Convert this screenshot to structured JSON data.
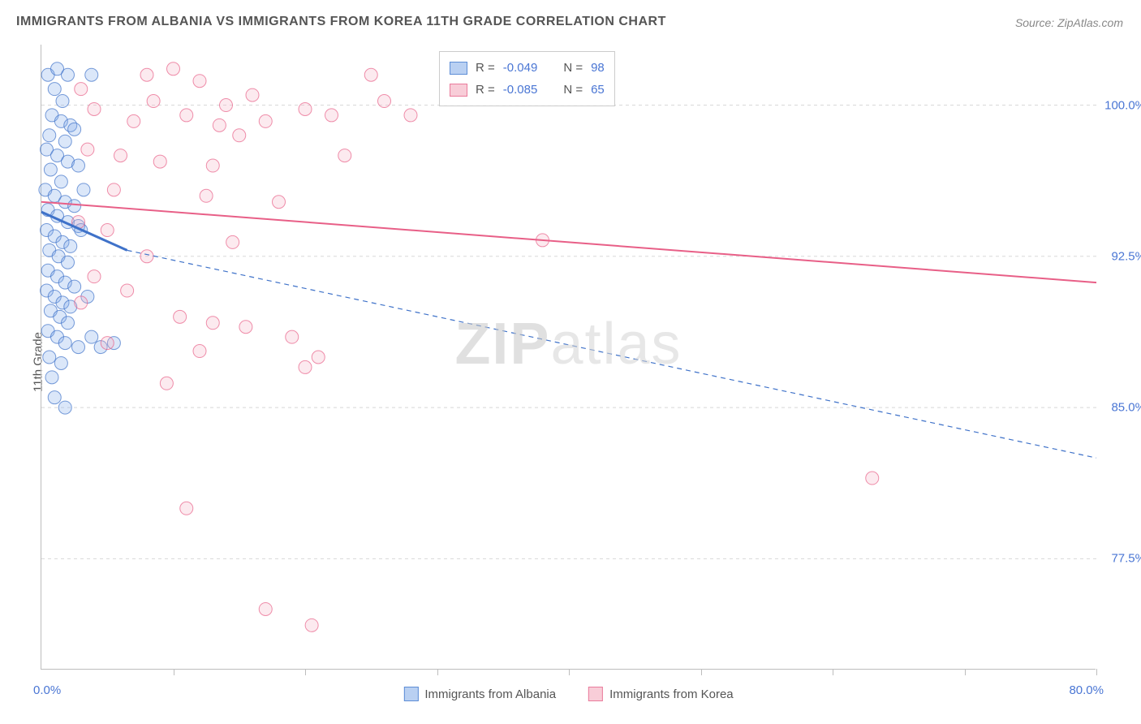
{
  "title": "IMMIGRANTS FROM ALBANIA VS IMMIGRANTS FROM KOREA 11TH GRADE CORRELATION CHART",
  "source": "Source: ZipAtlas.com",
  "ylabel": "11th Grade",
  "watermark_bold": "ZIP",
  "watermark_thin": "atlas",
  "chart": {
    "type": "scatter",
    "xlim": [
      0,
      80
    ],
    "ylim": [
      72,
      103
    ],
    "x_tick_positions": [
      0,
      10,
      20,
      30,
      40,
      50,
      60,
      70,
      80
    ],
    "x_axis_labels": {
      "left": "0.0%",
      "right": "80.0%"
    },
    "y_ticks": [
      {
        "value": 77.5,
        "label": "77.5%"
      },
      {
        "value": 85.0,
        "label": "85.0%"
      },
      {
        "value": 92.5,
        "label": "92.5%"
      },
      {
        "value": 100.0,
        "label": "100.0%"
      }
    ],
    "background_color": "#ffffff",
    "grid_color": "#d8d8d8",
    "axis_color": "#bdbdbd",
    "marker_radius": 8,
    "marker_stroke_width": 1,
    "marker_fill_opacity": 0.28,
    "line_width": 2,
    "series": [
      {
        "name": "Immigrants from Albania",
        "color_fill": "#7da9e8",
        "color_stroke": "#3f72c9",
        "swatch_fill": "#b9d0f2",
        "swatch_stroke": "#5d8dd6",
        "R": "-0.049",
        "N": "98",
        "regression": {
          "x1": 0,
          "y1": 94.7,
          "x2": 6.5,
          "y2": 92.8,
          "dash_x2": 80,
          "dash_y2": 82.5
        },
        "points": [
          [
            0.5,
            101.5
          ],
          [
            1.2,
            101.8
          ],
          [
            2.0,
            101.5
          ],
          [
            3.8,
            101.5
          ],
          [
            1.0,
            100.8
          ],
          [
            1.6,
            100.2
          ],
          [
            0.8,
            99.5
          ],
          [
            1.5,
            99.2
          ],
          [
            2.2,
            99.0
          ],
          [
            0.6,
            98.5
          ],
          [
            1.8,
            98.2
          ],
          [
            2.5,
            98.8
          ],
          [
            0.4,
            97.8
          ],
          [
            1.2,
            97.5
          ],
          [
            2.0,
            97.2
          ],
          [
            2.8,
            97.0
          ],
          [
            0.7,
            96.8
          ],
          [
            1.5,
            96.2
          ],
          [
            0.3,
            95.8
          ],
          [
            1.0,
            95.5
          ],
          [
            1.8,
            95.2
          ],
          [
            2.5,
            95.0
          ],
          [
            3.2,
            95.8
          ],
          [
            0.5,
            94.8
          ],
          [
            1.2,
            94.5
          ],
          [
            2.0,
            94.2
          ],
          [
            2.8,
            94.0
          ],
          [
            0.4,
            93.8
          ],
          [
            1.0,
            93.5
          ],
          [
            1.6,
            93.2
          ],
          [
            2.2,
            93.0
          ],
          [
            3.0,
            93.8
          ],
          [
            0.6,
            92.8
          ],
          [
            1.3,
            92.5
          ],
          [
            2.0,
            92.2
          ],
          [
            0.5,
            91.8
          ],
          [
            1.2,
            91.5
          ],
          [
            1.8,
            91.2
          ],
          [
            2.5,
            91.0
          ],
          [
            0.4,
            90.8
          ],
          [
            1.0,
            90.5
          ],
          [
            1.6,
            90.2
          ],
          [
            2.2,
            90.0
          ],
          [
            3.5,
            90.5
          ],
          [
            0.7,
            89.8
          ],
          [
            1.4,
            89.5
          ],
          [
            2.0,
            89.2
          ],
          [
            0.5,
            88.8
          ],
          [
            1.2,
            88.5
          ],
          [
            1.8,
            88.2
          ],
          [
            2.8,
            88.0
          ],
          [
            3.8,
            88.5
          ],
          [
            4.5,
            88.0
          ],
          [
            5.5,
            88.2
          ],
          [
            0.6,
            87.5
          ],
          [
            1.5,
            87.2
          ],
          [
            0.8,
            86.5
          ],
          [
            1.0,
            85.5
          ],
          [
            1.8,
            85.0
          ]
        ]
      },
      {
        "name": "Immigrants from Korea",
        "color_fill": "#f5b5c5",
        "color_stroke": "#e85f87",
        "swatch_fill": "#f8cdd8",
        "swatch_stroke": "#ea7b9b",
        "R": "-0.085",
        "N": "65",
        "regression": {
          "x1": 0,
          "y1": 95.2,
          "x2": 80,
          "y2": 91.2
        },
        "points": [
          [
            3.0,
            100.8
          ],
          [
            8.0,
            101.5
          ],
          [
            10.0,
            101.8
          ],
          [
            12.0,
            101.2
          ],
          [
            25.0,
            101.5
          ],
          [
            4.0,
            99.8
          ],
          [
            7.0,
            99.2
          ],
          [
            11.0,
            99.5
          ],
          [
            13.5,
            99.0
          ],
          [
            15.0,
            98.5
          ],
          [
            17.0,
            99.2
          ],
          [
            8.5,
            100.2
          ],
          [
            14.0,
            100.0
          ],
          [
            16.0,
            100.5
          ],
          [
            22.0,
            99.5
          ],
          [
            26.0,
            100.2
          ],
          [
            20.0,
            99.8
          ],
          [
            28.0,
            99.5
          ],
          [
            3.5,
            97.8
          ],
          [
            6.0,
            97.5
          ],
          [
            9.0,
            97.2
          ],
          [
            13.0,
            97.0
          ],
          [
            23.0,
            97.5
          ],
          [
            5.5,
            95.8
          ],
          [
            12.5,
            95.5
          ],
          [
            18.0,
            95.2
          ],
          [
            2.8,
            94.2
          ],
          [
            5.0,
            93.8
          ],
          [
            8.0,
            92.5
          ],
          [
            14.5,
            93.2
          ],
          [
            38.0,
            93.3
          ],
          [
            4.0,
            91.5
          ],
          [
            3.0,
            90.2
          ],
          [
            6.5,
            90.8
          ],
          [
            10.5,
            89.5
          ],
          [
            13.0,
            89.2
          ],
          [
            15.5,
            89.0
          ],
          [
            19.0,
            88.5
          ],
          [
            5.0,
            88.2
          ],
          [
            12.0,
            87.8
          ],
          [
            21.0,
            87.5
          ],
          [
            9.5,
            86.2
          ],
          [
            20.0,
            87.0
          ],
          [
            11.0,
            80.0
          ],
          [
            63.0,
            81.5
          ],
          [
            17.0,
            75.0
          ],
          [
            20.5,
            74.2
          ]
        ]
      }
    ]
  },
  "stats_labels": {
    "R": "R =",
    "N": "N ="
  },
  "bottom_legend": [
    {
      "label": "Immigrants from Albania",
      "fill": "#b9d0f2",
      "stroke": "#5d8dd6"
    },
    {
      "label": "Immigrants from Korea",
      "fill": "#f8cdd8",
      "stroke": "#ea7b9b"
    }
  ]
}
